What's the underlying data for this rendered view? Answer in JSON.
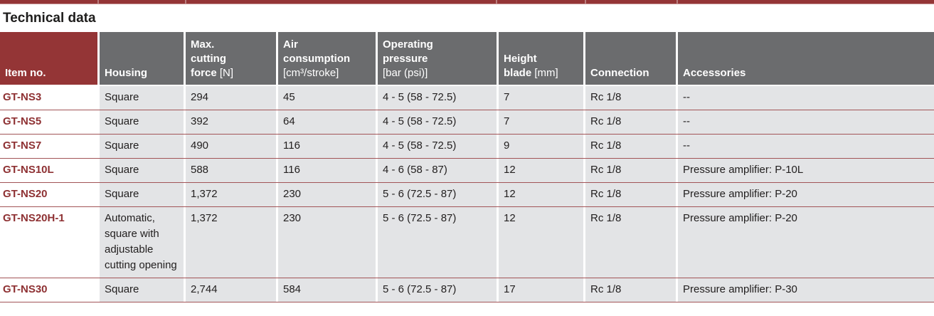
{
  "title": "Technical data",
  "colors": {
    "maroon": "#943536",
    "header_gray": "#6b6c6e",
    "row_gray": "#e3e4e6",
    "separator_red": "#a25457",
    "item_red": "#8e3133"
  },
  "table": {
    "column_keys": [
      "item_no",
      "housing",
      "max_cutting_force",
      "air_consumption",
      "operating_pressure",
      "height_blade",
      "connection",
      "accessories"
    ],
    "headers": [
      {
        "key": "item_no",
        "lines": [
          [
            {
              "t": "Item no.",
              "b": true
            }
          ]
        ]
      },
      {
        "key": "housing",
        "lines": [
          [
            {
              "t": "Housing",
              "b": true
            }
          ]
        ]
      },
      {
        "key": "max_cutting_force",
        "lines": [
          [
            {
              "t": "Max.",
              "b": true
            }
          ],
          [
            {
              "t": "cutting",
              "b": true
            }
          ],
          [
            {
              "t": "force",
              "b": true
            },
            {
              "t": " [N]",
              "b": false
            }
          ]
        ]
      },
      {
        "key": "air_consumption",
        "lines": [
          [
            {
              "t": "Air",
              "b": true
            }
          ],
          [
            {
              "t": "consumption",
              "b": true
            }
          ],
          [
            {
              "t": "[cm³/stroke]",
              "b": false
            }
          ]
        ]
      },
      {
        "key": "operating_pressure",
        "lines": [
          [
            {
              "t": "Operating",
              "b": true
            }
          ],
          [
            {
              "t": "pressure",
              "b": true
            }
          ],
          [
            {
              "t": "[bar (psi)]",
              "b": false
            }
          ]
        ]
      },
      {
        "key": "height_blade",
        "lines": [
          [
            {
              "t": "Height",
              "b": true
            }
          ],
          [
            {
              "t": "blade",
              "b": true
            },
            {
              "t": " [mm]",
              "b": false
            }
          ]
        ]
      },
      {
        "key": "connection",
        "lines": [
          [
            {
              "t": "Connection",
              "b": true
            }
          ]
        ]
      },
      {
        "key": "accessories",
        "lines": [
          [
            {
              "t": "Accessories",
              "b": true
            }
          ]
        ]
      }
    ],
    "rows": [
      {
        "item_no": "GT-NS3",
        "housing": "Square",
        "max_cutting_force": "294",
        "air_consumption": "45",
        "operating_pressure": "4 - 5 (58 - 72.5)",
        "height_blade": "7",
        "connection": "Rc 1/8",
        "accessories": "--"
      },
      {
        "item_no": "GT-NS5",
        "housing": "Square",
        "max_cutting_force": "392",
        "air_consumption": "64",
        "operating_pressure": "4 - 5 (58 - 72.5)",
        "height_blade": "7",
        "connection": "Rc 1/8",
        "accessories": "--"
      },
      {
        "item_no": "GT-NS7",
        "housing": "Square",
        "max_cutting_force": "490",
        "air_consumption": "116",
        "operating_pressure": "4 - 5 (58 - 72.5)",
        "height_blade": "9",
        "connection": "Rc 1/8",
        "accessories": "--"
      },
      {
        "item_no": "GT-NS10L",
        "housing": "Square",
        "max_cutting_force": "588",
        "air_consumption": "116",
        "operating_pressure": "4 - 6 (58 - 87)",
        "height_blade": "12",
        "connection": "Rc 1/8",
        "accessories": "Pressure amplifier: P-10L"
      },
      {
        "item_no": "GT-NS20",
        "housing": "Square",
        "max_cutting_force": "1,372",
        "air_consumption": "230",
        "operating_pressure": "5 - 6 (72.5 - 87)",
        "height_blade": "12",
        "connection": "Rc 1/8",
        "accessories": "Pressure amplifier: P-20"
      },
      {
        "item_no": "GT-NS20H-1",
        "housing": "Automatic, square with adjustable cutting opening",
        "max_cutting_force": "1,372",
        "air_consumption": "230",
        "operating_pressure": "5 - 6 (72.5 - 87)",
        "height_blade": "12",
        "connection": "Rc 1/8",
        "accessories": "Pressure amplifier: P-20"
      },
      {
        "item_no": "GT-NS30",
        "housing": "Square",
        "max_cutting_force": "2,744",
        "air_consumption": "584",
        "operating_pressure": "5 - 6 (72.5 - 87)",
        "height_blade": "17",
        "connection": "Rc 1/8",
        "accessories": "Pressure amplifier: P-30"
      }
    ]
  }
}
